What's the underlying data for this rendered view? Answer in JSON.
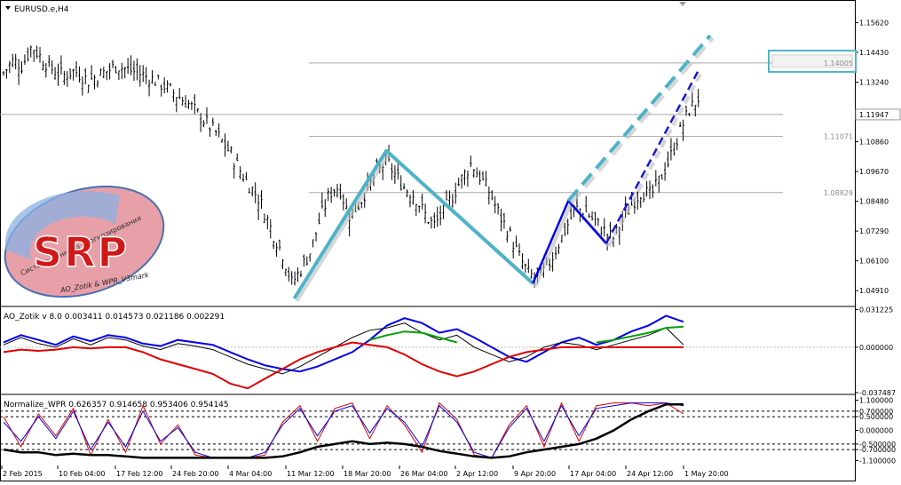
{
  "window": {
    "symbol_title": "EURUSD.e,H4",
    "menu_arrow": "down-triangle-icon"
  },
  "chart_data": [
    {
      "type": "candlestick",
      "title": "EURUSD.e,H4",
      "ylim": [
        1.0435,
        1.1645
      ],
      "y_ticks": [
        "1.15620",
        "1.14430",
        "1.13240",
        "1.11947",
        "1.10860",
        "1.09670",
        "1.08480",
        "1.07290",
        "1.06100",
        "1.04910"
      ],
      "current_price": "1.11947",
      "horizontal_levels": [
        {
          "label": "1.14005",
          "value": 1.14005,
          "boxed": true
        },
        {
          "label": "1.11947",
          "value": 1.11947
        },
        {
          "label": "1.11071",
          "value": 1.11071
        },
        {
          "label": "1.08829",
          "value": 1.08829
        }
      ],
      "x_ticks": [
        "2 Feb 2015",
        "10 Feb 04:00",
        "17 Feb 12:00",
        "24 Feb 20:00",
        "4 Mar 04:00",
        "11 Mar 12:00",
        "18 Mar 20:00",
        "26 Mar 04:00",
        "2 Apr 12:00",
        "9 Apr 20:00",
        "17 Apr 04:00",
        "24 Apr 12:00",
        "1 May 20:00"
      ],
      "price_path": [
        [
          0,
          1.136
        ],
        [
          0.4,
          1.141
        ],
        [
          0.8,
          1.139
        ],
        [
          1.2,
          1.147
        ],
        [
          1.6,
          1.142
        ],
        [
          2.0,
          1.138
        ],
        [
          2.5,
          1.135
        ],
        [
          3.0,
          1.137
        ],
        [
          3.6,
          1.133
        ],
        [
          4.2,
          1.136
        ],
        [
          4.8,
          1.139
        ],
        [
          5.4,
          1.137
        ],
        [
          6.0,
          1.135
        ],
        [
          6.6,
          1.132
        ],
        [
          7.2,
          1.128
        ],
        [
          7.8,
          1.124
        ],
        [
          8.4,
          1.118
        ],
        [
          9.0,
          1.112
        ],
        [
          9.6,
          1.104
        ],
        [
          10.2,
          1.094
        ],
        [
          10.8,
          1.086
        ],
        [
          11.4,
          1.072
        ],
        [
          11.8,
          1.064
        ],
        [
          12.2,
          1.052
        ],
        [
          12.6,
          1.058
        ],
        [
          13.0,
          1.065
        ],
        [
          13.4,
          1.078
        ],
        [
          13.8,
          1.088
        ],
        [
          14.2,
          1.091
        ],
        [
          14.6,
          1.079
        ],
        [
          15.0,
          1.083
        ],
        [
          15.4,
          1.09
        ],
        [
          15.8,
          1.096
        ],
        [
          16.2,
          1.101
        ],
        [
          16.6,
          1.095
        ],
        [
          17.0,
          1.09
        ],
        [
          17.4,
          1.087
        ],
        [
          17.8,
          1.08
        ],
        [
          18.2,
          1.075
        ],
        [
          18.6,
          1.08
        ],
        [
          19.0,
          1.087
        ],
        [
          19.4,
          1.094
        ],
        [
          19.8,
          1.1
        ],
        [
          20.2,
          1.094
        ],
        [
          20.6,
          1.088
        ],
        [
          21.0,
          1.079
        ],
        [
          21.4,
          1.072
        ],
        [
          21.8,
          1.063
        ],
        [
          22.2,
          1.056
        ],
        [
          22.6,
          1.054
        ],
        [
          23.0,
          1.058
        ],
        [
          23.4,
          1.066
        ],
        [
          23.8,
          1.074
        ],
        [
          24.2,
          1.082
        ],
        [
          24.6,
          1.081
        ],
        [
          25.0,
          1.077
        ],
        [
          25.4,
          1.073
        ],
        [
          25.8,
          1.07
        ],
        [
          26.2,
          1.077
        ],
        [
          26.6,
          1.084
        ],
        [
          27.0,
          1.089
        ],
        [
          27.4,
          1.087
        ],
        [
          27.8,
          1.094
        ],
        [
          28.2,
          1.102
        ],
        [
          28.6,
          1.112
        ],
        [
          29.0,
          1.121
        ],
        [
          29.4,
          1.126
        ]
      ],
      "patterns": [
        {
          "name": "zigzag-primary",
          "color": "#4eb3c8",
          "points": [
            [
              12.3,
              1.046
            ],
            [
              16.2,
              1.105
            ],
            [
              22.4,
              1.052
            ]
          ]
        },
        {
          "name": "zigzag-secondary",
          "color": "#0000ee",
          "points": [
            [
              22.4,
              1.052
            ],
            [
              23.9,
              1.085
            ],
            [
              25.5,
              1.068
            ]
          ]
        },
        {
          "name": "projection-upper",
          "color": "#4eb3c8",
          "dashed": true,
          "points": [
            [
              23.9,
              1.085
            ],
            [
              29.9,
              1.151
            ]
          ]
        },
        {
          "name": "projection-lower",
          "color": "#1a1acc",
          "dashed": true,
          "points": [
            [
              25.5,
              1.068
            ],
            [
              29.4,
              1.137
            ]
          ]
        }
      ]
    },
    {
      "type": "line",
      "title": "AO_Zotik v 8.0 0.003411 0.014573 0.021186 0.002291",
      "ylim": [
        -0.0375,
        0.0315
      ],
      "y_ticks": [
        "0.031225",
        "0.000000",
        "-0.037487"
      ],
      "series": [
        {
          "color": "#0000ee",
          "values": [
            0.004,
            0.01,
            0.006,
            0.002,
            0.009,
            0.005,
            0.01,
            0.008,
            0.003,
            0.001,
            0.006,
            0.004,
            0.002,
            -0.004,
            -0.01,
            -0.015,
            -0.018,
            -0.02,
            -0.016,
            -0.01,
            -0.004,
            0.006,
            0.018,
            0.024,
            0.02,
            0.012,
            0.015,
            0.008,
            0.0,
            -0.008,
            -0.012,
            -0.004,
            0.004,
            0.008,
            0.002,
            0.006,
            0.013,
            0.018,
            0.026,
            0.021
          ]
        },
        {
          "color": "#000000",
          "values": [
            0.002,
            0.008,
            0.003,
            0.0,
            0.007,
            0.002,
            0.008,
            0.006,
            0.001,
            -0.002,
            0.003,
            0.001,
            -0.002,
            -0.008,
            -0.014,
            -0.018,
            -0.022,
            -0.016,
            -0.008,
            0.0,
            0.008,
            0.014,
            0.016,
            0.02,
            0.012,
            0.006,
            0.01,
            0.0,
            -0.006,
            -0.012,
            -0.008,
            0.0,
            0.004,
            0.002,
            -0.002,
            0.002,
            0.006,
            0.01,
            0.016,
            0.002
          ]
        },
        {
          "color": "#e00000",
          "values": [
            -0.004,
            -0.002,
            -0.003,
            -0.002,
            0.0,
            -0.001,
            0.0,
            0.0,
            -0.004,
            -0.01,
            -0.014,
            -0.018,
            -0.022,
            -0.03,
            -0.034,
            -0.026,
            -0.018,
            -0.01,
            -0.004,
            0.0,
            0.004,
            0.002,
            0.0,
            -0.006,
            -0.014,
            -0.02,
            -0.024,
            -0.02,
            -0.014,
            -0.008,
            -0.004,
            -0.002,
            0.0,
            0.0,
            0.0,
            0.0,
            0.0,
            0.0,
            0.0,
            0.0
          ]
        },
        {
          "color": "#00a000",
          "values": [
            null,
            null,
            null,
            null,
            null,
            null,
            null,
            null,
            null,
            null,
            null,
            null,
            null,
            null,
            null,
            null,
            null,
            null,
            null,
            null,
            null,
            0.006,
            0.01,
            0.013,
            0.012,
            0.008,
            0.004,
            null,
            null,
            null,
            null,
            null,
            null,
            null,
            0.004,
            0.006,
            0.009,
            0.012,
            0.016,
            0.017
          ]
        }
      ]
    },
    {
      "type": "line",
      "title": "Normalize_WPR 0.626357 0.914658 0.953406 0.954145",
      "ylim": [
        -1.15,
        1.15
      ],
      "y_ticks": [
        "1.100000",
        "0.700000",
        "0.500000",
        "0.000000",
        "-0.500000",
        "-0.700000",
        "-1.100000"
      ],
      "dashed_levels": [
        0.7,
        0.5,
        -0.5,
        -0.7
      ],
      "series": [
        {
          "color": "#e00000",
          "values": [
            0.5,
            -0.6,
            0.6,
            -0.2,
            0.8,
            -0.9,
            0.4,
            -0.8,
            0.9,
            -0.5,
            0.2,
            -0.9,
            -1.0,
            -1.0,
            -1.0,
            -0.9,
            0.3,
            0.9,
            -0.4,
            0.8,
            1.0,
            -0.3,
            0.9,
            0.2,
            -0.8,
            1.0,
            0.4,
            -0.9,
            -1.0,
            0.2,
            0.9,
            -0.6,
            1.0,
            -0.4,
            0.9,
            1.0,
            1.0,
            0.9,
            1.0,
            0.6
          ]
        },
        {
          "color": "#0000ee",
          "values": [
            0.3,
            -0.4,
            0.5,
            -0.3,
            0.7,
            -0.7,
            0.3,
            -0.6,
            0.7,
            -0.4,
            0.1,
            -0.8,
            -1.0,
            -1.0,
            -1.0,
            -0.8,
            0.2,
            0.8,
            -0.2,
            0.7,
            0.9,
            -0.1,
            0.8,
            0.3,
            -0.6,
            0.9,
            0.3,
            -0.8,
            -1.0,
            0.1,
            0.8,
            -0.4,
            0.9,
            -0.2,
            0.8,
            0.9,
            1.0,
            1.0,
            1.0,
            0.9
          ]
        },
        {
          "color": "#000000",
          "values": [
            -0.7,
            -0.8,
            -0.8,
            -0.9,
            -0.85,
            -0.9,
            -0.9,
            -0.95,
            -1.0,
            -1.0,
            -1.0,
            -1.0,
            -1.0,
            -1.0,
            -1.0,
            -1.0,
            -0.95,
            -0.8,
            -0.6,
            -0.5,
            -0.4,
            -0.5,
            -0.45,
            -0.5,
            -0.6,
            -0.75,
            -0.85,
            -0.95,
            -1.0,
            -0.95,
            -0.8,
            -0.7,
            -0.6,
            -0.5,
            -0.3,
            0.0,
            0.4,
            0.7,
            0.95,
            0.95
          ]
        }
      ]
    }
  ],
  "logo": {
    "arc_text": "Система раннего прогнозирования",
    "main": "SRP",
    "footer": "AO_Zotik & WPR_V3mark"
  },
  "colors": {
    "primary_pattern": "#4eb3c8",
    "secondary_pattern": "#0000ee",
    "gridline": "#a8a8a8",
    "candle": "#000000"
  }
}
